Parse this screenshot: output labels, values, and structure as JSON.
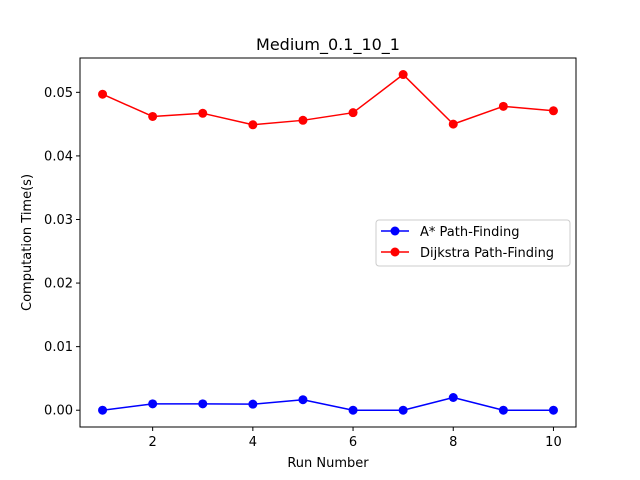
{
  "chart_data": {
    "type": "line",
    "title": "Medium_0.1_10_1",
    "xlabel": "Run Number",
    "ylabel": "Computation Time(s)",
    "x": [
      1,
      2,
      3,
      4,
      5,
      6,
      7,
      8,
      9,
      10
    ],
    "xlim": [
      0.55,
      10.45
    ],
    "ylim": [
      -0.00264,
      0.0554
    ],
    "xticks": [
      2,
      4,
      6,
      8,
      10
    ],
    "yticks": [
      0.0,
      0.01,
      0.02,
      0.03,
      0.04,
      0.05
    ],
    "ytick_labels": [
      "0.00",
      "0.01",
      "0.02",
      "0.03",
      "0.04",
      "0.05"
    ],
    "grid": false,
    "legend_position": "center-right",
    "series": [
      {
        "name": "A* Path-Finding",
        "color": "#0000ff",
        "marker": "circle",
        "values": [
          0.0,
          0.001,
          0.001,
          0.00095,
          0.00165,
          0.0,
          0.0,
          0.002,
          0.0,
          0.0
        ]
      },
      {
        "name": "Dijkstra Path-Finding",
        "color": "#ff0000",
        "marker": "circle",
        "values": [
          0.0497,
          0.0462,
          0.0467,
          0.0449,
          0.0456,
          0.0468,
          0.0528,
          0.045,
          0.0478,
          0.0471
        ]
      }
    ]
  }
}
